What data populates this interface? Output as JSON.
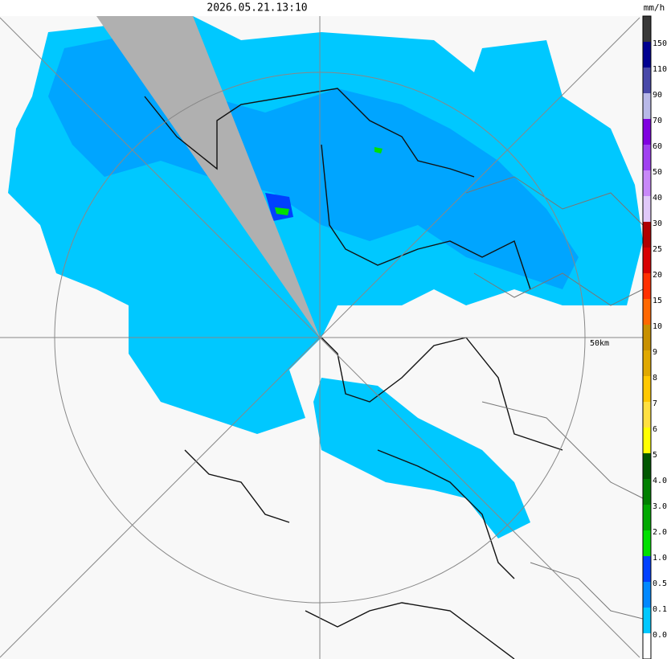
{
  "header": {
    "timestamp": "2026.05.21.13:10"
  },
  "legend": {
    "unit": "mm/h",
    "labels": [
      "150",
      "110",
      "90",
      "70",
      "60",
      "50",
      "40",
      "30",
      "25",
      "20",
      "15",
      "10",
      "9",
      "8",
      "7",
      "6",
      "5",
      "4.0",
      "3.0",
      "2.0",
      "1.0",
      "0.5",
      "0.1",
      "0.0"
    ],
    "colors": [
      "#383838",
      "#000090",
      "#4848a8",
      "#b8b8e8",
      "#8000e0",
      "#a040f0",
      "#c888f8",
      "#e0c8f8",
      "#b00000",
      "#d80000",
      "#ff3000",
      "#ff6800",
      "#c89000",
      "#e0a800",
      "#ffc800",
      "#ffe040",
      "#ffff00",
      "#005800",
      "#008000",
      "#00a800",
      "#00e000",
      "#0040ff",
      "#0088ff",
      "#00c8ff",
      "#ffffff"
    ]
  },
  "map": {
    "range_label": "50km"
  }
}
